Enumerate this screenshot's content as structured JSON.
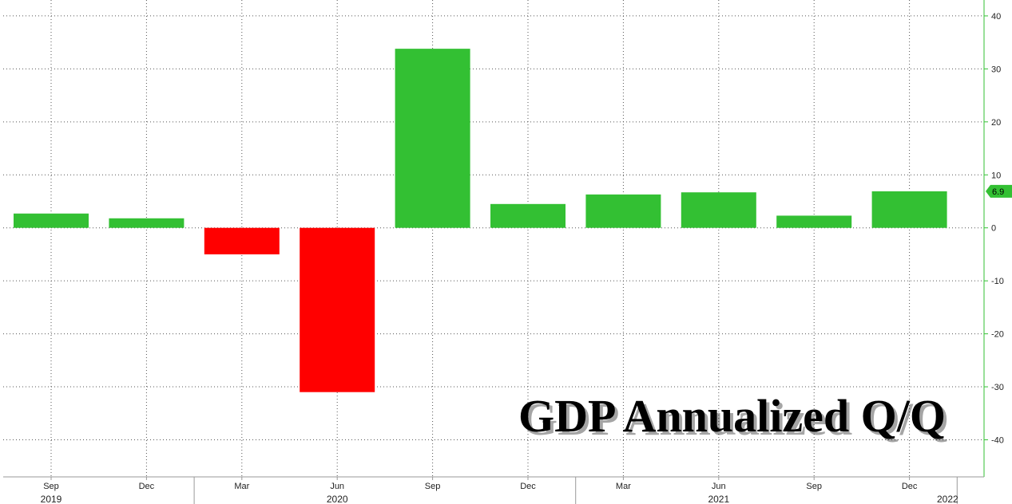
{
  "chart_data": {
    "type": "bar",
    "title": "GDP Annualized Q/Q",
    "categories": [
      "Sep",
      "Dec",
      "Mar",
      "Jun",
      "Sep",
      "Dec",
      "Mar",
      "Jun",
      "Sep",
      "Dec"
    ],
    "year_labels": [
      {
        "label": "2019",
        "index": 0
      },
      {
        "label": "2020",
        "index": 3
      },
      {
        "label": "2021",
        "index": 7
      },
      {
        "label": "2022",
        "index": 9.4
      }
    ],
    "values": [
      2.7,
      1.8,
      -5.0,
      -31.0,
      33.8,
      4.5,
      6.3,
      6.7,
      2.3,
      6.9
    ],
    "ylim": [
      -47,
      43
    ],
    "yticks": [
      -40,
      -30,
      -20,
      -10,
      0,
      10,
      20,
      30,
      40
    ],
    "last_value_label": "6.9",
    "colors": {
      "positive": "#33c033",
      "negative": "#ff0000",
      "axis": "#33c033",
      "tag": "#33c033"
    },
    "grid": true,
    "axis_position": "right"
  }
}
